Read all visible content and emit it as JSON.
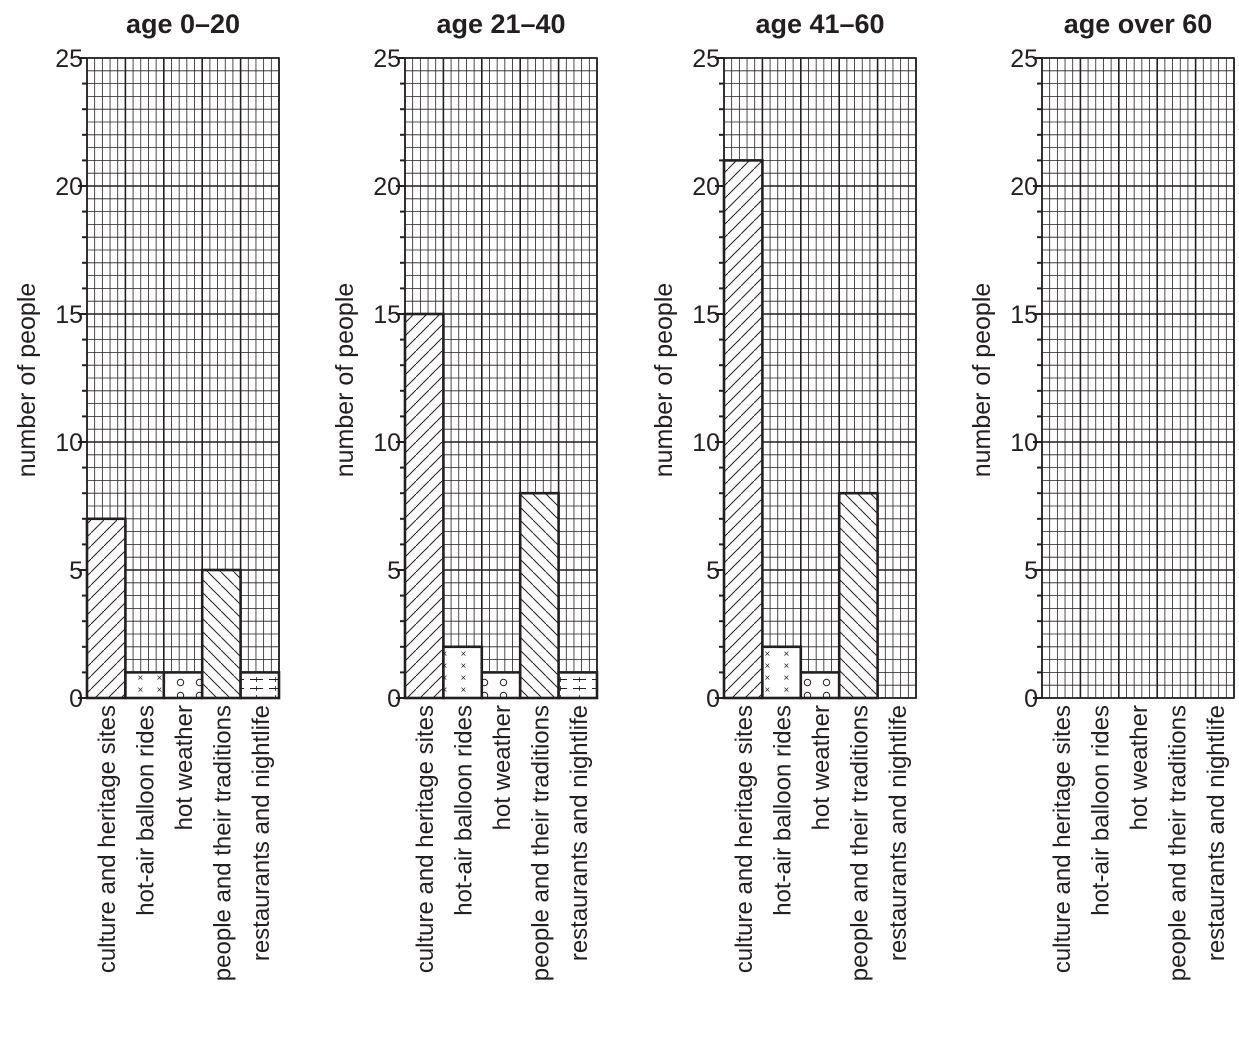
{
  "chart_data": [
    {
      "type": "bar",
      "title": "age 0–20",
      "ylabel": "number of people",
      "xlabel": "",
      "categories": [
        "culture and heritage sites",
        "hot-air balloon rides",
        "hot weather",
        "people and their traditions",
        "restaurants and nightlife"
      ],
      "values": [
        7,
        1,
        1,
        5,
        1
      ],
      "ylim": [
        0,
        25
      ],
      "yticks": [
        0,
        5,
        10,
        15,
        20,
        25
      ],
      "grid": true
    },
    {
      "type": "bar",
      "title": "age 21–40",
      "ylabel": "number of people",
      "xlabel": "",
      "categories": [
        "culture and heritage sites",
        "hot-air balloon rides",
        "hot weather",
        "people and their traditions",
        "restaurants and nightlife"
      ],
      "values": [
        15,
        2,
        1,
        8,
        1
      ],
      "ylim": [
        0,
        25
      ],
      "yticks": [
        0,
        5,
        10,
        15,
        20,
        25
      ],
      "grid": true
    },
    {
      "type": "bar",
      "title": "age 41–60",
      "ylabel": "number of people",
      "xlabel": "",
      "categories": [
        "culture and heritage sites",
        "hot-air balloon rides",
        "hot weather",
        "people and their traditions",
        "restaurants and nightlife"
      ],
      "values": [
        21,
        2,
        1,
        8,
        0
      ],
      "ylim": [
        0,
        25
      ],
      "yticks": [
        0,
        5,
        10,
        15,
        20,
        25
      ],
      "grid": true
    },
    {
      "type": "bar",
      "title": "age over 60",
      "ylabel": "number of people",
      "xlabel": "",
      "categories": [
        "culture and heritage sites",
        "hot-air balloon rides",
        "hot weather",
        "people and their traditions",
        "restaurants and nightlife"
      ],
      "values": [
        0,
        0,
        0,
        0,
        0
      ],
      "ylim": [
        0,
        25
      ],
      "yticks": [
        0,
        5,
        10,
        15,
        20,
        25
      ],
      "grid": true
    }
  ],
  "patterns": [
    "diagonal-hatch-up",
    "cross-marks",
    "circle-marks",
    "diagonal-hatch-down",
    "horizontal-dash-lines"
  ],
  "ink_color": "#231f20"
}
